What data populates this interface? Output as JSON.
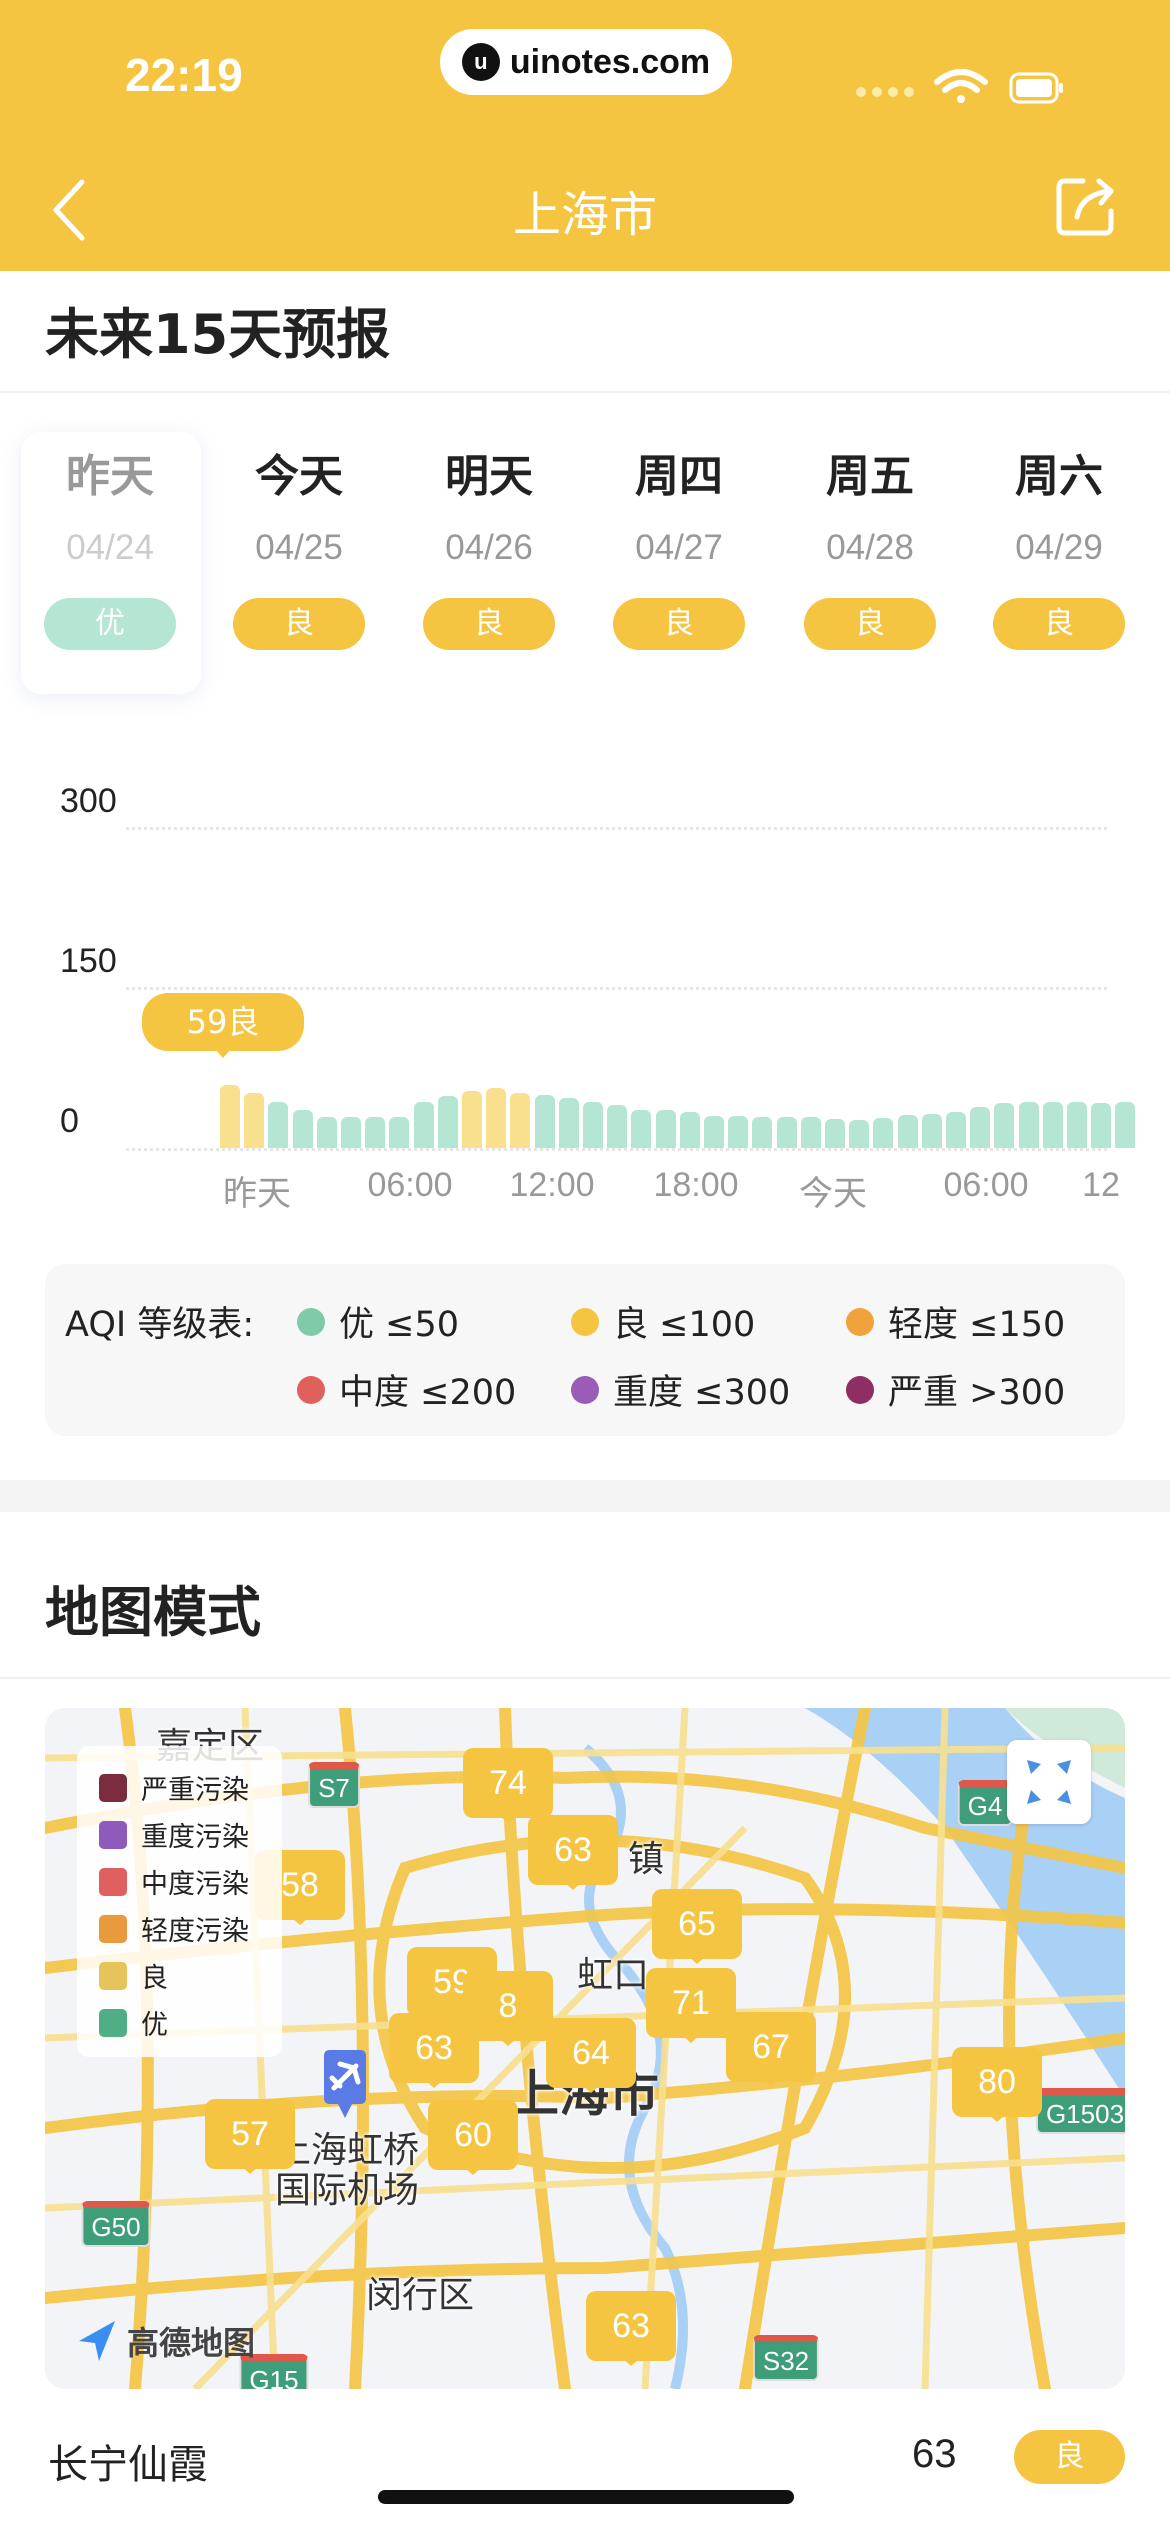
{
  "status_bar": {
    "time": "22:19",
    "url": "uinotes.com"
  },
  "nav": {
    "title": "上海市",
    "back_icon": "chevron-left-icon",
    "share_icon": "share-icon"
  },
  "colors": {
    "brand": "#F5C542",
    "good_bar": "#F8E08E",
    "excellent_bar": "#B5E6D3",
    "excellent_badge": "#B5E6D3"
  },
  "forecast": {
    "title": "未来15天预报",
    "days": [
      {
        "name": "昨天",
        "date": "04/24",
        "level": "优",
        "selected": true
      },
      {
        "name": "今天",
        "date": "04/25",
        "level": "良"
      },
      {
        "name": "明天",
        "date": "04/26",
        "level": "良"
      },
      {
        "name": "周四",
        "date": "04/27",
        "level": "良"
      },
      {
        "name": "周五",
        "date": "04/28",
        "level": "良"
      },
      {
        "name": "周六",
        "date": "04/29",
        "level": "良"
      }
    ]
  },
  "chart_data": {
    "type": "bar",
    "ylim": [
      0,
      300
    ],
    "yticks": [
      "300",
      "150",
      "0"
    ],
    "xticks": [
      "昨天",
      "06:00",
      "12:00",
      "18:00",
      "今天",
      "06:00",
      "12"
    ],
    "grid": true,
    "values": [
      59,
      52,
      43,
      36,
      29,
      29,
      29,
      29,
      43,
      49,
      53,
      56,
      52,
      50,
      47,
      43,
      40,
      36,
      36,
      34,
      30,
      30,
      29,
      29,
      29,
      27,
      26,
      28,
      31,
      32,
      34,
      38,
      42,
      43,
      43,
      43,
      42,
      43
    ],
    "tooltip": "59良"
  },
  "aqi_legend": {
    "label": "AQI 等级表:",
    "items": [
      {
        "text": "优 ≤50",
        "color": "#7FCBA8"
      },
      {
        "text": "良 ≤100",
        "color": "#F5C542"
      },
      {
        "text": "轻度 ≤150",
        "color": "#F0A23C"
      },
      {
        "text": "中度 ≤200",
        "color": "#E0605C"
      },
      {
        "text": "重度 ≤300",
        "color": "#9B5CB8"
      },
      {
        "text": "严重 >300",
        "color": "#8E2E62"
      }
    ]
  },
  "map_section": {
    "title": "地图模式",
    "legend": [
      {
        "text": "严重污染",
        "color": "#7B2D3E"
      },
      {
        "text": "重度污染",
        "color": "#8E5BBD"
      },
      {
        "text": "中度污染",
        "color": "#E06060"
      },
      {
        "text": "轻度污染",
        "color": "#E89A3C"
      },
      {
        "text": "良",
        "color": "#E6C45A"
      },
      {
        "text": "优",
        "color": "#4FAE85"
      }
    ],
    "markers": [
      "74",
      "63",
      "58",
      "65",
      "59",
      "8",
      "71",
      "63",
      "64",
      "67",
      "80",
      "57",
      "60",
      "63"
    ],
    "places": [
      "嘉定区",
      "镇",
      "虹口",
      "上海市",
      "上海虹桥",
      "国际机场",
      "闵行区"
    ],
    "shields": [
      "S7",
      "G4",
      "G1503",
      "G50",
      "G15",
      "S32"
    ],
    "provider": "高德地图"
  },
  "station": {
    "name": "长宁仙霞",
    "value": "63",
    "level": "良"
  }
}
